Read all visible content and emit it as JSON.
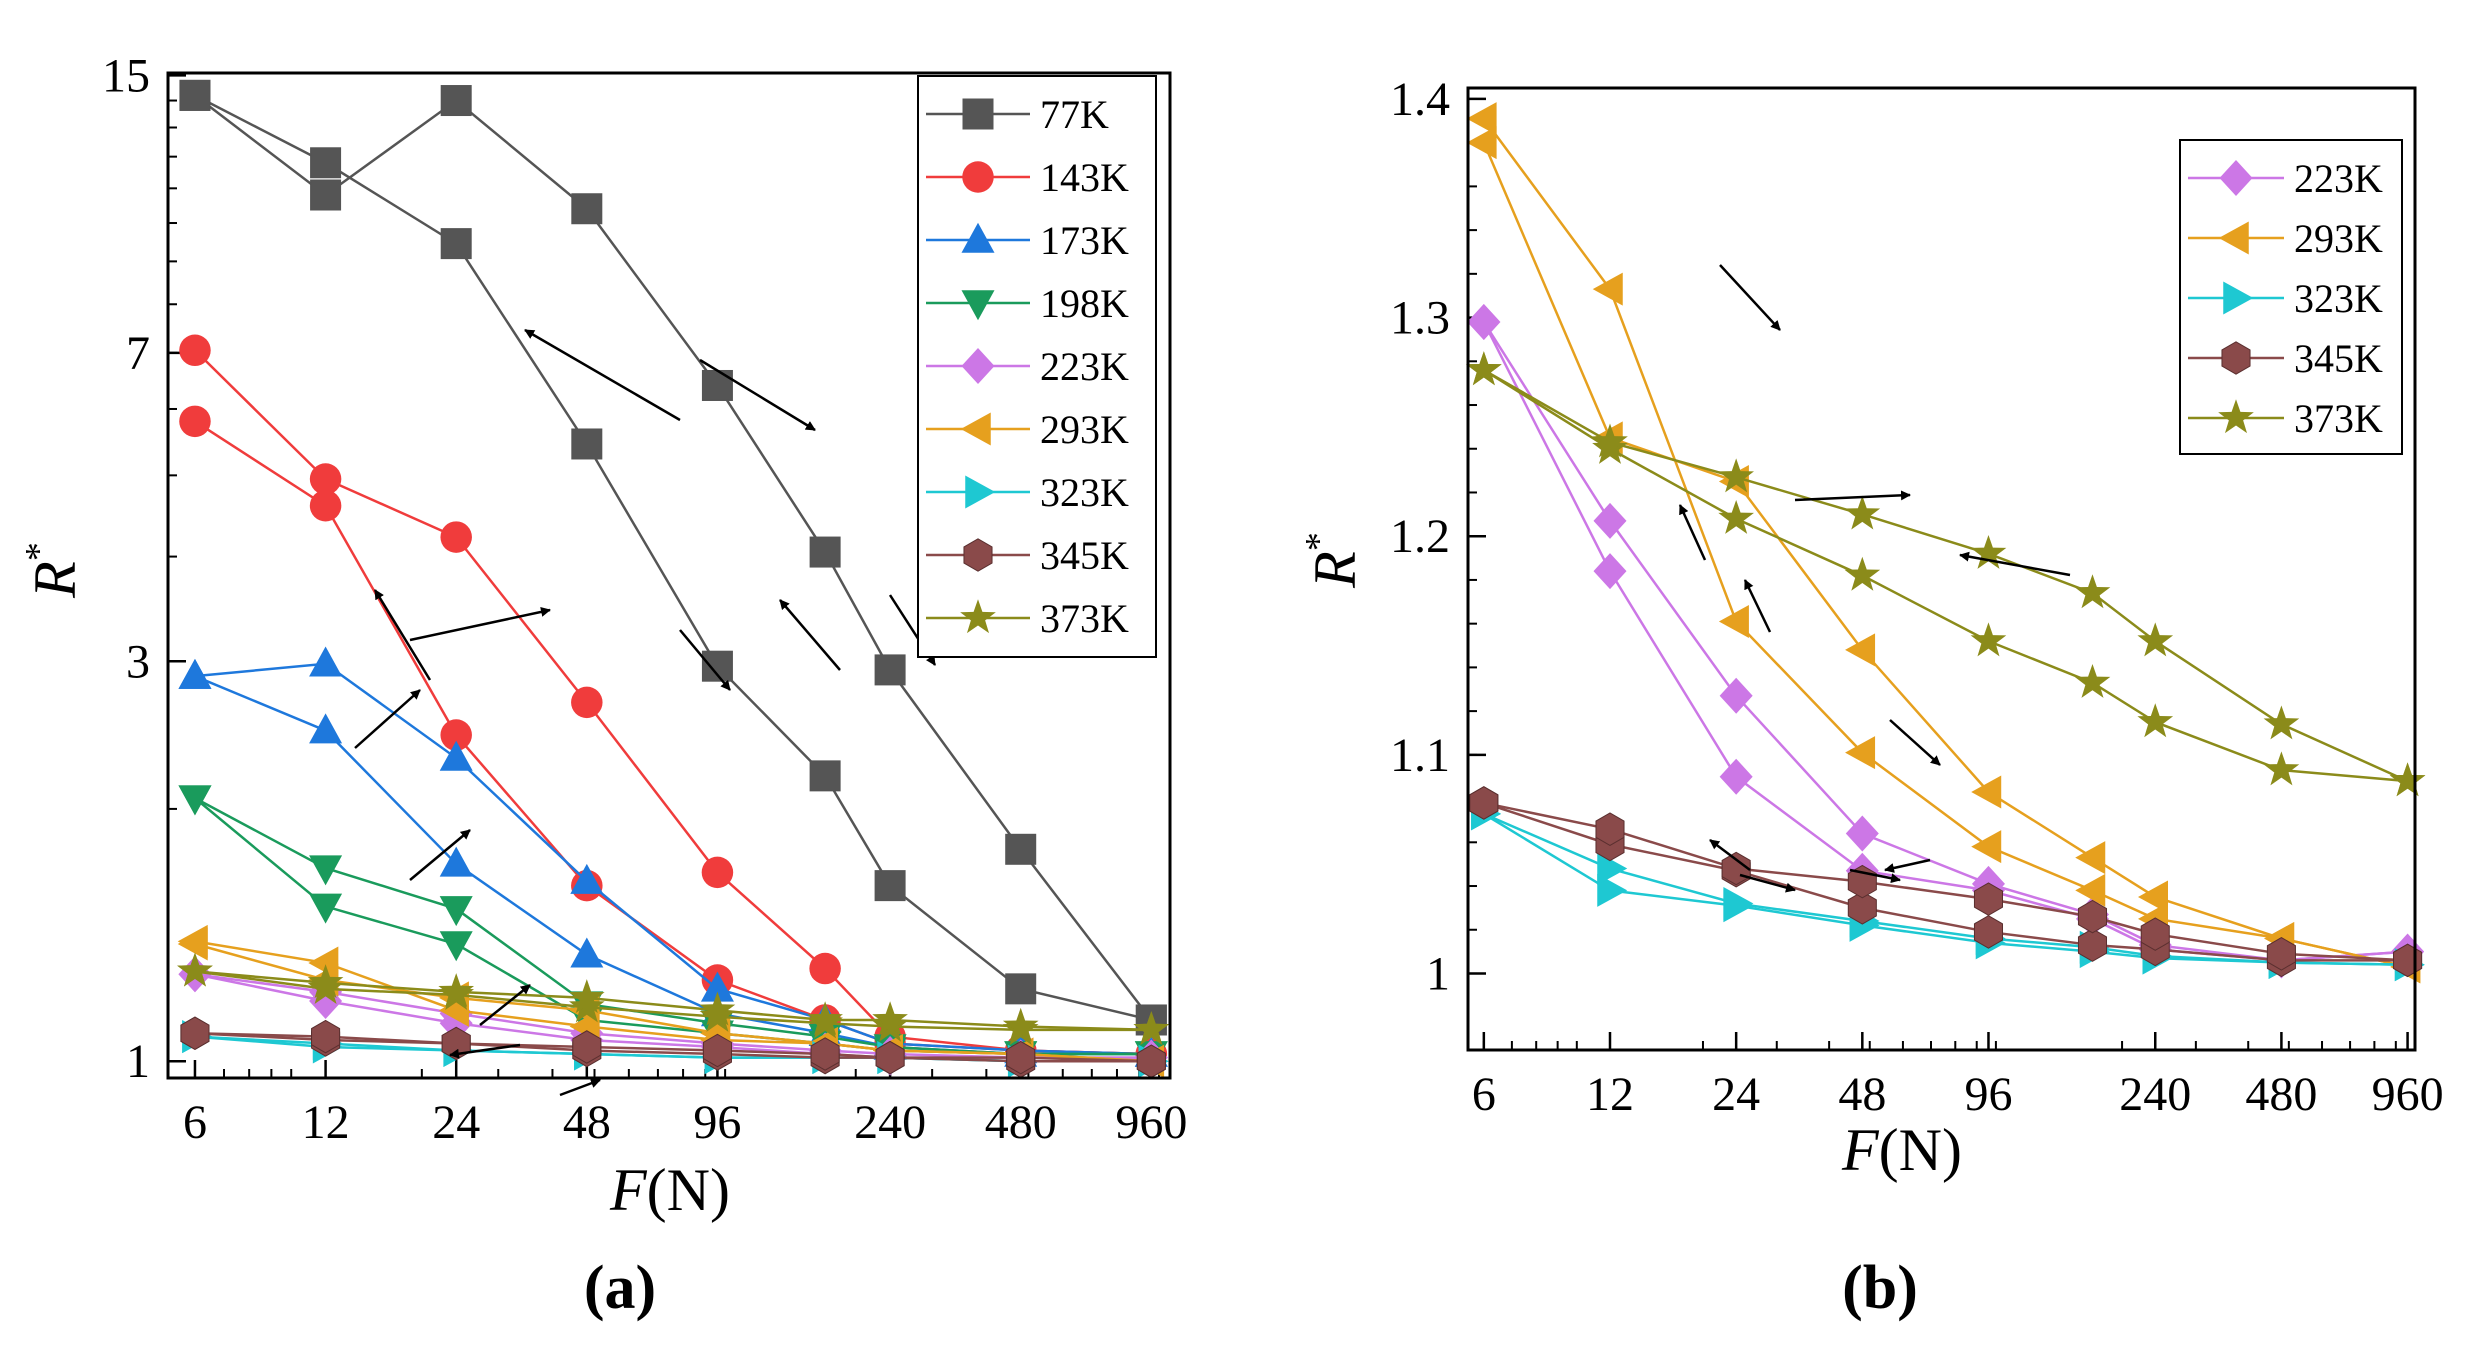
{
  "figure": {
    "panel_labels": [
      "(a)",
      "(b)"
    ]
  },
  "chart_data": [
    {
      "panel": "(a)",
      "type": "line",
      "xscale": "log",
      "yscale": "log",
      "xlabel": {
        "italic": "F",
        "rest": "(N)"
      },
      "ylabel": {
        "base": "R",
        "sup": "*"
      },
      "x_ticks": [
        6,
        12,
        24,
        48,
        96,
        240,
        480,
        960
      ],
      "y_ticks": [
        1,
        3,
        7,
        15
      ],
      "xlim": [
        5.2,
        1060
      ],
      "ylim": [
        0.955,
        15.1
      ],
      "legend_position": "top-right",
      "x": [
        6,
        12,
        24,
        48,
        96,
        170,
        240,
        480,
        960
      ],
      "series": [
        {
          "name": "77K",
          "color": "#555555",
          "marker": "square",
          "loading": [
            14.2,
            10.8,
            14.0,
            10.4,
            6.4,
            4.05,
            2.93,
            1.79,
            1.12
          ],
          "unloading": [
            14.2,
            11.8,
            9.45,
            5.45,
            2.96,
            2.19,
            1.62,
            1.22,
            1.12
          ]
        },
        {
          "name": "143K",
          "color": "#f03c3c",
          "marker": "circle",
          "loading": [
            7.05,
            4.95,
            4.22,
            2.68,
            1.68,
            1.29,
            1.07,
            1.03,
            1.02
          ],
          "unloading": [
            5.8,
            4.6,
            2.45,
            1.62,
            1.25,
            1.12,
            1.05,
            1.03,
            1.02
          ]
        },
        {
          "name": "173K",
          "color": "#1e78dc",
          "marker": "triangle-up",
          "loading": [
            2.88,
            2.98,
            2.3,
            1.64,
            1.22,
            1.12,
            1.05,
            1.03,
            1.02
          ],
          "unloading": [
            2.88,
            2.48,
            1.72,
            1.34,
            1.14,
            1.08,
            1.04,
            1.02,
            1.02
          ]
        },
        {
          "name": "198K",
          "color": "#1a9b5c",
          "marker": "triangle-down",
          "loading": [
            2.06,
            1.7,
            1.52,
            1.17,
            1.11,
            1.07,
            1.04,
            1.02,
            1.02
          ],
          "unloading": [
            2.06,
            1.53,
            1.38,
            1.12,
            1.08,
            1.05,
            1.03,
            1.02,
            1.02
          ]
        },
        {
          "name": "223K",
          "color": "#cc77e6",
          "marker": "diamond",
          "loading": [
            1.27,
            1.21,
            1.14,
            1.08,
            1.05,
            1.03,
            1.02,
            1.01,
            1.01
          ],
          "unloading": [
            1.27,
            1.18,
            1.11,
            1.06,
            1.04,
            1.02,
            1.01,
            1.01,
            1.01
          ]
        },
        {
          "name": "293K",
          "color": "#e6a01e",
          "marker": "triangle-left",
          "loading": [
            1.39,
            1.31,
            1.15,
            1.1,
            1.06,
            1.05,
            1.03,
            1.02,
            1.0
          ],
          "unloading": [
            1.38,
            1.25,
            1.19,
            1.15,
            1.08,
            1.05,
            1.03,
            1.02,
            1.0
          ]
        },
        {
          "name": "323K",
          "color": "#1ec8d2",
          "marker": "triangle-right",
          "loading": [
            1.07,
            1.04,
            1.03,
            1.02,
            1.01,
            1.01,
            1.01,
            1.0,
            1.0
          ],
          "unloading": [
            1.07,
            1.05,
            1.03,
            1.02,
            1.01,
            1.01,
            1.01,
            1.0,
            1.0
          ]
        },
        {
          "name": "345K",
          "color": "#8a4a4a",
          "marker": "hexagon",
          "loading": [
            1.08,
            1.07,
            1.05,
            1.04,
            1.03,
            1.02,
            1.01,
            1.01,
            1.0
          ],
          "unloading": [
            1.08,
            1.06,
            1.05,
            1.03,
            1.02,
            1.01,
            1.01,
            1.0,
            1.0
          ]
        },
        {
          "name": "373K",
          "color": "#8b8b1a",
          "marker": "star",
          "loading": [
            1.28,
            1.24,
            1.21,
            1.19,
            1.15,
            1.12,
            1.12,
            1.1,
            1.09
          ],
          "unloading": [
            1.28,
            1.22,
            1.2,
            1.16,
            1.13,
            1.11,
            1.1,
            1.09,
            1.09
          ]
        }
      ]
    },
    {
      "panel": "(b)",
      "type": "line",
      "xscale": "log",
      "yscale": "linear",
      "xlabel": {
        "italic": "F",
        "rest": "(N)"
      },
      "ylabel": {
        "base": "R",
        "sup": "*"
      },
      "x_ticks": [
        6,
        12,
        24,
        48,
        96,
        240,
        480,
        960
      ],
      "y_ticks": [
        1,
        1.1,
        1.2,
        1.3,
        1.4
      ],
      "y_tick_labels": [
        "1",
        "1.1",
        "1.2",
        "1.3",
        "1.4"
      ],
      "xlim": [
        5.5,
        1000
      ],
      "ylim": [
        0.965,
        1.405
      ],
      "legend_position": "top-right",
      "x": [
        6,
        12,
        24,
        48,
        96,
        170,
        240,
        480,
        960
      ],
      "series": [
        {
          "name": "223K",
          "color": "#cc77e6",
          "marker": "diamond",
          "loading": [
            1.298,
            1.207,
            1.127,
            1.064,
            1.041,
            1.027,
            1.013,
            1.006,
            1.01
          ],
          "unloading": [
            1.298,
            1.184,
            1.09,
            1.047,
            1.038,
            1.025,
            1.011,
            1.006,
            1.01
          ]
        },
        {
          "name": "293K",
          "color": "#e6a01e",
          "marker": "triangle-left",
          "loading": [
            1.391,
            1.313,
            1.161,
            1.101,
            1.058,
            1.038,
            1.025,
            1.016,
            1.003
          ],
          "unloading": [
            1.38,
            1.245,
            1.225,
            1.148,
            1.083,
            1.053,
            1.035,
            1.016,
            1.003
          ]
        },
        {
          "name": "323K",
          "color": "#1ec8d2",
          "marker": "triangle-right",
          "loading": [
            1.073,
            1.048,
            1.032,
            1.024,
            1.016,
            1.012,
            1.008,
            1.005,
            1.004
          ],
          "unloading": [
            1.073,
            1.038,
            1.031,
            1.022,
            1.014,
            1.01,
            1.007,
            1.005,
            1.004
          ]
        },
        {
          "name": "345K",
          "color": "#8a4a4a",
          "marker": "hexagon",
          "loading": [
            1.078,
            1.066,
            1.048,
            1.042,
            1.034,
            1.026,
            1.018,
            1.009,
            1.006
          ],
          "unloading": [
            1.078,
            1.059,
            1.047,
            1.03,
            1.019,
            1.013,
            1.011,
            1.006,
            1.006
          ]
        },
        {
          "name": "373K",
          "color": "#8b8b1a",
          "marker": "star",
          "loading": [
            1.276,
            1.243,
            1.227,
            1.21,
            1.192,
            1.174,
            1.152,
            1.114,
            1.088
          ],
          "unloading": [
            1.276,
            1.24,
            1.208,
            1.182,
            1.152,
            1.133,
            1.115,
            1.093,
            1.088
          ]
        }
      ]
    }
  ]
}
